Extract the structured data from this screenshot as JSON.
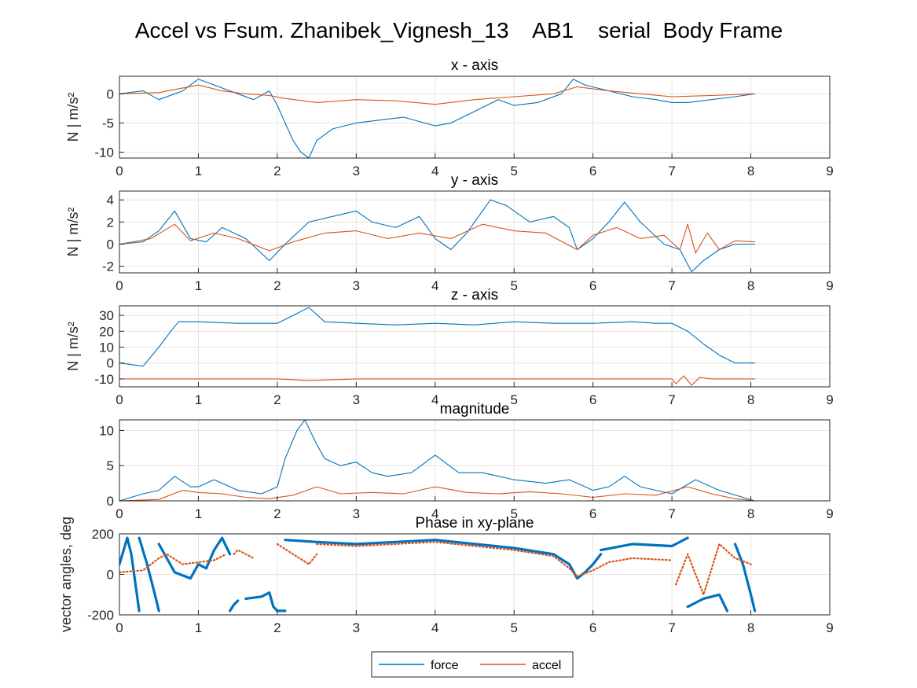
{
  "figure": {
    "title": "Accel vs Fsum. Zhanibek_Vignesh_13    AB1    serial  Body Frame",
    "colors": {
      "force": "#0072BD",
      "accel": "#D95319"
    },
    "legend": {
      "placement": "bottom-center",
      "entries": [
        "force",
        "accel"
      ]
    }
  },
  "chart_data": [
    {
      "type": "line",
      "title": "x - axis",
      "ylabel": "N | m/s²",
      "xlim": [
        0,
        9
      ],
      "ylim": [
        -11,
        3
      ],
      "xticks": [
        "0",
        "1",
        "2",
        "3",
        "4",
        "5",
        "6",
        "7",
        "8",
        "9"
      ],
      "yticks": [
        -10,
        -5,
        0
      ],
      "ytick_labels": [
        "-10",
        "-5",
        "0"
      ],
      "grid": true,
      "series": [
        {
          "name": "force",
          "x": [
            0,
            0.3,
            0.5,
            0.8,
            1.0,
            1.2,
            1.5,
            1.7,
            1.9,
            2.0,
            2.1,
            2.2,
            2.3,
            2.4,
            2.5,
            2.7,
            3.0,
            3.3,
            3.6,
            4.0,
            4.2,
            4.5,
            4.8,
            5.0,
            5.3,
            5.6,
            5.75,
            5.9,
            6.2,
            6.5,
            6.8,
            7.0,
            7.2,
            7.5,
            7.8,
            8.05
          ],
          "y": [
            0,
            0.5,
            -1,
            0.5,
            2.5,
            1.5,
            0,
            -1,
            0.5,
            -2,
            -5,
            -8,
            -10,
            -11,
            -8,
            -6,
            -5,
            -4.5,
            -4,
            -5.5,
            -5,
            -3,
            -1,
            -2,
            -1.5,
            0,
            2.5,
            1.5,
            0.5,
            -0.5,
            -1,
            -1.5,
            -1.5,
            -1,
            -0.5,
            0
          ]
        },
        {
          "name": "accel",
          "x": [
            0,
            0.5,
            1.0,
            1.3,
            1.6,
            1.9,
            2.1,
            2.5,
            3.0,
            3.5,
            4.0,
            4.5,
            5.0,
            5.5,
            5.8,
            6.2,
            6.6,
            7.0,
            7.5,
            8.05
          ],
          "y": [
            0,
            0.2,
            1.5,
            0.5,
            0,
            -0.3,
            -0.8,
            -1.5,
            -1,
            -1.2,
            -1.8,
            -1,
            -0.5,
            0,
            1.2,
            0.5,
            0,
            -0.5,
            -0.3,
            0
          ]
        }
      ]
    },
    {
      "type": "line",
      "title": "y - axis",
      "ylabel": "N | m/s²",
      "xlim": [
        0,
        9
      ],
      "ylim": [
        -2.6,
        4.8
      ],
      "xticks": [
        "0",
        "1",
        "2",
        "3",
        "4",
        "5",
        "6",
        "7",
        "8",
        "9"
      ],
      "yticks": [
        -2,
        0,
        2,
        4
      ],
      "ytick_labels": [
        "-2",
        "0",
        "2",
        "4"
      ],
      "grid": true,
      "series": [
        {
          "name": "force",
          "x": [
            0,
            0.3,
            0.5,
            0.7,
            0.9,
            1.1,
            1.3,
            1.6,
            1.9,
            2.1,
            2.4,
            2.7,
            3.0,
            3.2,
            3.5,
            3.8,
            4.0,
            4.2,
            4.4,
            4.7,
            4.9,
            5.2,
            5.5,
            5.7,
            5.8,
            6.0,
            6.2,
            6.4,
            6.6,
            6.9,
            7.1,
            7.25,
            7.4,
            7.6,
            7.8,
            8.05
          ],
          "y": [
            0,
            0.2,
            1.2,
            3,
            0.5,
            0.2,
            1.5,
            0.5,
            -1.5,
            0,
            2,
            2.5,
            3,
            2,
            1.5,
            2.5,
            0.5,
            -0.5,
            1,
            4,
            3.5,
            2,
            2.5,
            1.5,
            -0.5,
            0.5,
            2,
            3.8,
            2,
            0,
            -0.5,
            -2.5,
            -1.5,
            -0.5,
            0,
            0
          ]
        },
        {
          "name": "accel",
          "x": [
            0,
            0.4,
            0.7,
            0.9,
            1.2,
            1.5,
            1.9,
            2.2,
            2.6,
            3.0,
            3.4,
            3.8,
            4.2,
            4.6,
            5.0,
            5.4,
            5.8,
            6.0,
            6.3,
            6.6,
            6.9,
            7.1,
            7.2,
            7.3,
            7.45,
            7.6,
            7.8,
            8.05
          ],
          "y": [
            0,
            0.5,
            1.8,
            0.3,
            1,
            0.5,
            -0.6,
            0.2,
            1,
            1.2,
            0.5,
            1,
            0.5,
            1.8,
            1.2,
            1,
            -0.5,
            0.8,
            1.5,
            0.5,
            0.8,
            -0.5,
            1.8,
            -0.8,
            1,
            -0.5,
            0.3,
            0.2
          ]
        }
      ]
    },
    {
      "type": "line",
      "title": "z - axis",
      "ylabel": "N | m/s²",
      "xlim": [
        0,
        9
      ],
      "ylim": [
        -15,
        36
      ],
      "xticks": [
        "0",
        "1",
        "2",
        "3",
        "4",
        "5",
        "6",
        "7",
        "8",
        "9"
      ],
      "yticks": [
        -10,
        0,
        10,
        20,
        30
      ],
      "ytick_labels": [
        "-10",
        "0",
        "10",
        "20",
        "30"
      ],
      "grid": true,
      "series": [
        {
          "name": "force",
          "x": [
            0,
            0.3,
            0.5,
            0.65,
            0.75,
            1.0,
            1.5,
            2.0,
            2.2,
            2.4,
            2.6,
            3.0,
            3.5,
            4.0,
            4.5,
            5.0,
            5.5,
            6.0,
            6.5,
            6.8,
            7.0,
            7.2,
            7.4,
            7.6,
            7.8,
            8.05
          ],
          "y": [
            0,
            -2,
            10,
            20,
            26,
            26,
            25,
            25,
            30,
            35,
            26,
            25,
            24,
            25,
            24,
            26,
            25,
            25,
            26,
            25,
            25,
            20,
            12,
            5,
            0,
            0
          ]
        },
        {
          "name": "accel",
          "x": [
            0,
            1,
            2,
            2.4,
            3,
            4,
            5,
            6,
            7,
            7.05,
            7.15,
            7.25,
            7.35,
            7.5,
            8.05
          ],
          "y": [
            -10,
            -10,
            -10,
            -11,
            -10,
            -10,
            -10,
            -10,
            -10,
            -13,
            -8,
            -14,
            -9,
            -10,
            -10
          ]
        }
      ]
    },
    {
      "type": "line",
      "title": "magnitude",
      "ylabel": "",
      "xlim": [
        0,
        9
      ],
      "ylim": [
        0,
        11.5
      ],
      "xticks": [
        "0",
        "1",
        "2",
        "3",
        "4",
        "5",
        "6",
        "7",
        "8",
        "9"
      ],
      "yticks": [
        0,
        5,
        10
      ],
      "ytick_labels": [
        "0",
        "5",
        "10"
      ],
      "grid": true,
      "series": [
        {
          "name": "force",
          "x": [
            0,
            0.3,
            0.5,
            0.7,
            0.9,
            1.0,
            1.2,
            1.5,
            1.8,
            2.0,
            2.1,
            2.25,
            2.35,
            2.5,
            2.6,
            2.8,
            3.0,
            3.2,
            3.4,
            3.7,
            4.0,
            4.3,
            4.6,
            5.0,
            5.4,
            5.7,
            6.0,
            6.2,
            6.4,
            6.6,
            6.8,
            7.0,
            7.3,
            7.6,
            7.9,
            8.05
          ],
          "y": [
            0,
            1,
            1.5,
            3.5,
            2,
            2,
            3,
            1.5,
            1,
            2,
            6,
            10,
            11.5,
            8,
            6,
            5,
            5.5,
            4,
            3.5,
            4,
            6.5,
            4,
            4,
            3,
            2.5,
            3,
            1.5,
            2,
            3.5,
            2,
            1.5,
            1,
            3,
            1.5,
            0.5,
            0
          ]
        },
        {
          "name": "accel",
          "x": [
            0,
            0.5,
            0.8,
            1.0,
            1.3,
            1.6,
            1.9,
            2.2,
            2.5,
            2.8,
            3.2,
            3.6,
            4.0,
            4.4,
            4.8,
            5.2,
            5.6,
            6.0,
            6.4,
            6.8,
            7.2,
            7.5,
            7.8,
            8.05
          ],
          "y": [
            0,
            0.2,
            1.5,
            1.2,
            1,
            0.5,
            0.3,
            0.8,
            2,
            1,
            1.2,
            1,
            2,
            1.2,
            1,
            1.3,
            1,
            0.5,
            1,
            0.8,
            2,
            1,
            0.3,
            0
          ]
        }
      ]
    },
    {
      "type": "scatter",
      "title": "Phase in xy-plane",
      "ylabel": "vector angles, deg",
      "xlim": [
        0,
        9
      ],
      "ylim": [
        -200,
        200
      ],
      "xticks": [
        "0",
        "1",
        "2",
        "3",
        "4",
        "5",
        "6",
        "7",
        "8",
        "9"
      ],
      "yticks": [
        -200,
        0,
        200
      ],
      "ytick_labels": [
        "-200",
        "0",
        "200"
      ],
      "grid": true,
      "series": [
        {
          "name": "force",
          "segments": [
            {
              "x": [
                0,
                0.1,
                0.15,
                0.25
              ],
              "y": [
                50,
                180,
                100,
                -180
              ]
            },
            {
              "x": [
                0.25,
                0.35,
                0.45,
                0.5
              ],
              "y": [
                180,
                50,
                -100,
                -180
              ]
            },
            {
              "x": [
                0.5,
                0.7,
                0.9,
                1.0,
                1.1,
                1.2,
                1.3,
                1.4
              ],
              "y": [
                150,
                10,
                -20,
                50,
                30,
                120,
                180,
                100
              ]
            },
            {
              "x": [
                1.4,
                1.45,
                1.5
              ],
              "y": [
                -180,
                -150,
                -130
              ]
            },
            {
              "x": [
                1.6,
                1.8,
                1.9,
                1.95,
                2.0,
                2.1
              ],
              "y": [
                -120,
                -110,
                -90,
                -160,
                -180,
                -180
              ]
            },
            {
              "x": [
                2.1,
                2.5,
                3.0,
                3.5,
                4.0,
                4.5,
                5.0,
                5.5,
                5.7,
                5.8,
                5.9,
                6.0,
                6.1
              ],
              "y": [
                170,
                160,
                150,
                160,
                170,
                150,
                130,
                100,
                50,
                -20,
                10,
                50,
                100
              ]
            },
            {
              "x": [
                6.1,
                6.5,
                7.0,
                7.2
              ],
              "y": [
                120,
                150,
                140,
                180
              ]
            },
            {
              "x": [
                7.2,
                7.4,
                7.6,
                7.7
              ],
              "y": [
                -160,
                -120,
                -100,
                -180
              ]
            },
            {
              "x": [
                7.8,
                7.9,
                8.0,
                8.05
              ],
              "y": [
                150,
                50,
                -100,
                -180
              ]
            }
          ]
        },
        {
          "name": "accel",
          "segments": [
            {
              "x": [
                0,
                0.3,
                0.5,
                0.6,
                0.8,
                1.0,
                1.2,
                1.35
              ],
              "y": [
                10,
                20,
                80,
                100,
                50,
                60,
                70,
                100
              ]
            },
            {
              "x": [
                1.45,
                1.5,
                1.7
              ],
              "y": [
                100,
                120,
                80
              ]
            },
            {
              "x": [
                2.0,
                2.2,
                2.4,
                2.5
              ],
              "y": [
                150,
                100,
                50,
                100
              ]
            },
            {
              "x": [
                2.5,
                3.0,
                3.5,
                4.0,
                4.5,
                5.0,
                5.5,
                5.7,
                5.8,
                6.0,
                6.2,
                6.5,
                7.0
              ],
              "y": [
                150,
                140,
                150,
                160,
                140,
                120,
                90,
                30,
                -10,
                20,
                60,
                80,
                70
              ]
            },
            {
              "x": [
                7.05,
                7.2,
                7.4,
                7.6,
                7.8,
                8.0
              ],
              "y": [
                -50,
                100,
                -100,
                150,
                80,
                50
              ]
            }
          ]
        }
      ]
    }
  ]
}
